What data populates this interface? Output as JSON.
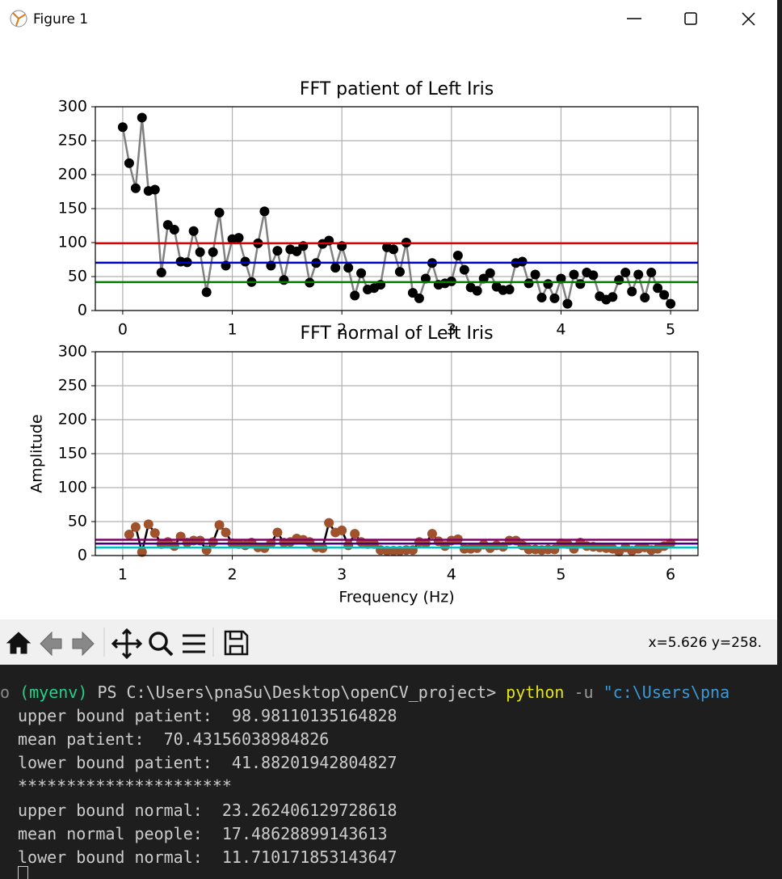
{
  "window": {
    "title": "Figure 1"
  },
  "chart_data": [
    {
      "type": "line",
      "title": "FFT patient of Left Iris",
      "x": [
        0,
        0.059,
        0.118,
        0.176,
        0.235,
        0.294,
        0.353,
        0.412,
        0.471,
        0.529,
        0.588,
        0.647,
        0.706,
        0.765,
        0.824,
        0.882,
        0.941,
        1,
        1.059,
        1.118,
        1.176,
        1.235,
        1.294,
        1.353,
        1.412,
        1.471,
        1.529,
        1.588,
        1.647,
        1.706,
        1.765,
        1.824,
        1.882,
        1.941,
        2,
        2.059,
        2.118,
        2.176,
        2.235,
        2.294,
        2.353,
        2.412,
        2.471,
        2.529,
        2.588,
        2.647,
        2.706,
        2.765,
        2.824,
        2.882,
        2.941,
        3,
        3.059,
        3.118,
        3.176,
        3.235,
        3.294,
        3.353,
        3.412,
        3.471,
        3.529,
        3.588,
        3.647,
        3.706,
        3.765,
        3.824,
        3.882,
        3.941,
        4,
        4.059,
        4.118,
        4.176,
        4.235,
        4.294,
        4.353,
        4.412,
        4.471,
        4.529,
        4.588,
        4.647,
        4.706,
        4.765,
        4.824,
        4.882,
        4.941,
        5
      ],
      "series": [
        {
          "line_color": "#808080",
          "marker_color": "#000000",
          "values": [
            270,
            217,
            180,
            284,
            176,
            178,
            56,
            126,
            119,
            72,
            71,
            117,
            86,
            27,
            86,
            144,
            66,
            105,
            107,
            72,
            42,
            99,
            146,
            66,
            88,
            45,
            90,
            87,
            95,
            41,
            70,
            98,
            103,
            63,
            95,
            63,
            22,
            55,
            31,
            33,
            38,
            93,
            90,
            57,
            100,
            26,
            18,
            47,
            70,
            38,
            40,
            43,
            81,
            60,
            34,
            29,
            47,
            55,
            35,
            30,
            31,
            70,
            72,
            40,
            53,
            19,
            39,
            18,
            47,
            10,
            53,
            39,
            56,
            52,
            21,
            16,
            20,
            45,
            56,
            28,
            53,
            19,
            56,
            33,
            23,
            10
          ]
        }
      ],
      "hlines": [
        {
          "value": 98.98110135164828,
          "color": "#e00000"
        },
        {
          "value": 70.43156038984826,
          "color": "#0000cc"
        },
        {
          "value": 41.88201942804827,
          "color": "#008000"
        }
      ],
      "xlim": [
        -0.25,
        5.25
      ],
      "xticks": [
        0,
        1,
        2,
        3,
        4,
        5
      ],
      "ylim": [
        0,
        300
      ],
      "yticks": [
        0,
        50,
        100,
        150,
        200,
        250,
        300
      ],
      "grid": true
    },
    {
      "type": "line",
      "title": "FFT normal of Left Iris",
      "xlabel": "Frequency (Hz)",
      "ylabel": "Amplitude",
      "x": [
        1.059,
        1.118,
        1.176,
        1.235,
        1.294,
        1.353,
        1.412,
        1.471,
        1.529,
        1.588,
        1.647,
        1.706,
        1.765,
        1.824,
        1.882,
        1.941,
        2,
        2.059,
        2.118,
        2.176,
        2.235,
        2.294,
        2.353,
        2.412,
        2.471,
        2.529,
        2.588,
        2.647,
        2.706,
        2.765,
        2.824,
        2.882,
        2.941,
        3,
        3.059,
        3.118,
        3.176,
        3.235,
        3.294,
        3.353,
        3.412,
        3.471,
        3.529,
        3.588,
        3.647,
        3.706,
        3.765,
        3.824,
        3.882,
        3.941,
        4,
        4.059,
        4.118,
        4.176,
        4.235,
        4.294,
        4.353,
        4.412,
        4.471,
        4.529,
        4.588,
        4.647,
        4.706,
        4.765,
        4.824,
        4.882,
        4.941,
        5,
        5.059,
        5.118,
        5.176,
        5.235,
        5.294,
        5.353,
        5.412,
        5.471,
        5.529,
        5.588,
        5.647,
        5.706,
        5.765,
        5.824,
        5.882,
        5.941,
        6
      ],
      "series": [
        {
          "line_color": "#000000",
          "marker_color": "#a0522d",
          "values": [
            31,
            42,
            5,
            46,
            33,
            17,
            20,
            14,
            28,
            19,
            22,
            22,
            8,
            20,
            45,
            34,
            18,
            17,
            15,
            19,
            12,
            11,
            18,
            34,
            19,
            20,
            25,
            23,
            20,
            12,
            11,
            48,
            34,
            37,
            15,
            32,
            20,
            17,
            17,
            8,
            7,
            7,
            7,
            8,
            8,
            20,
            18,
            32,
            21,
            14,
            22,
            24,
            10,
            10,
            11,
            16,
            11,
            15,
            13,
            22,
            22,
            15,
            9,
            9,
            8,
            9,
            9,
            18,
            17,
            10,
            19,
            14,
            13,
            12,
            11,
            10,
            6,
            12,
            7,
            10,
            12,
            8,
            10,
            14,
            18
          ]
        }
      ],
      "hlines": [
        {
          "value": 23.262406129728618,
          "color": "#800060"
        },
        {
          "value": 17.48628899143613,
          "color": "#4b0082"
        },
        {
          "value": 11.710171853143647,
          "color": "#00bfbf"
        }
      ],
      "xlim": [
        0.75,
        6.25
      ],
      "xticks": [
        1,
        2,
        3,
        4,
        5,
        6
      ],
      "ylim": [
        0,
        300
      ],
      "yticks": [
        0,
        50,
        100,
        150,
        200,
        250,
        300
      ],
      "grid": true
    }
  ],
  "toolbar": {
    "status": "x=5.626 y=258."
  },
  "terminal": {
    "prompt": {
      "env": "(myenv)",
      "cwd": "PS C:\\Users\\pnaSu\\Desktop\\openCV_project>",
      "command": "python",
      "flag": "-u",
      "arg": "\"c:\\Users\\pna"
    },
    "output": [
      "upper bound patient:  98.98110135164828",
      "mean patient:  70.43156038984826",
      "lower bound patient:  41.88201942804827",
      "**********************",
      "upper bound normal:  23.262406129728618",
      "mean normal people:  17.48628899143613",
      "lower bound normal:  11.710171853143647"
    ]
  }
}
